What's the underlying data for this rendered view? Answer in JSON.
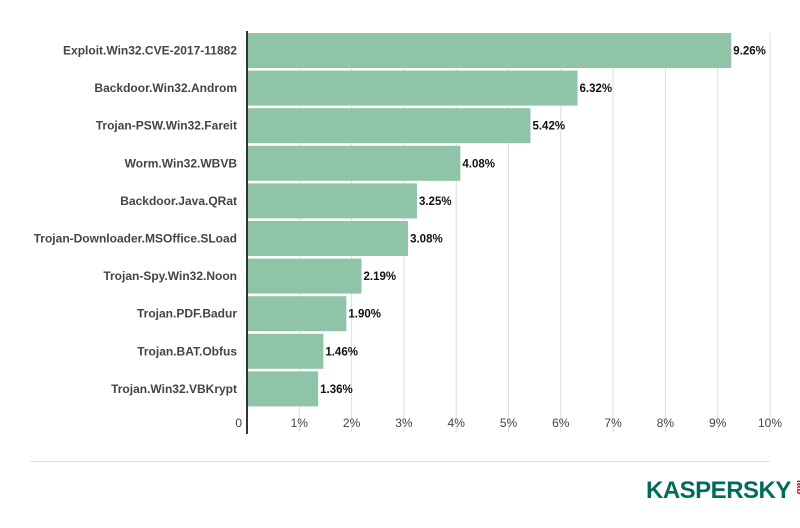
{
  "chart_data": {
    "type": "bar",
    "orientation": "horizontal",
    "categories": [
      "Exploit.Win32.CVE-2017-11882",
      "Backdoor.Win32.Androm",
      "Trojan-PSW.Win32.Fareit",
      "Worm.Win32.WBVB",
      "Backdoor.Java.QRat",
      "Trojan-Downloader.MSOffice.SLoad",
      "Trojan-Spy.Win32.Noon",
      "Trojan.PDF.Badur",
      "Trojan.BAT.Obfus",
      "Trojan.Win32.VBKrypt"
    ],
    "values": [
      9.26,
      6.32,
      5.42,
      4.08,
      3.25,
      3.08,
      2.19,
      1.9,
      1.46,
      1.36
    ],
    "value_labels": [
      "9.26%",
      "6.32%",
      "5.42%",
      "4.08%",
      "3.25%",
      "3.08%",
      "2.19%",
      "1.90%",
      "1.46%",
      "1.36%"
    ],
    "xlim": [
      0,
      10
    ],
    "x_ticks": [
      "0",
      "1%",
      "2%",
      "3%",
      "4%",
      "5%",
      "6%",
      "7%",
      "8%",
      "9%",
      "10%"
    ],
    "grid": true,
    "bar_color": "#8fc4a8"
  },
  "logo": {
    "brand": "KASPERSKY",
    "suffix": "lab",
    "color": "#006d5b",
    "accent": "#e2001a"
  }
}
